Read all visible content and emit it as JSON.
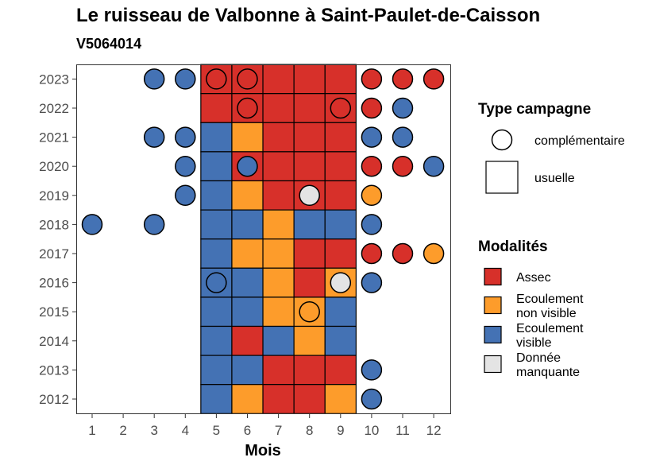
{
  "chart_data": {
    "type": "heatmap",
    "title": "Le ruisseau de Valbonne à Saint-Paulet-de-Caisson",
    "subtitle": "V5064014",
    "xlabel": "Mois",
    "ylabel": "",
    "x_ticks": [
      "1",
      "2",
      "3",
      "4",
      "5",
      "6",
      "7",
      "8",
      "9",
      "10",
      "11",
      "12"
    ],
    "y_ticks": [
      "2012",
      "2013",
      "2014",
      "2015",
      "2016",
      "2017",
      "2018",
      "2019",
      "2020",
      "2021",
      "2022",
      "2023"
    ],
    "colors": {
      "assec": "#d7302a",
      "ecoulement_non_visible": "#fd9c2b",
      "ecoulement_visible": "#4472b4",
      "donnee_manquante": "#e4e4e4"
    },
    "legend_type": {
      "title": "Type campagne",
      "items": [
        {
          "label": "complémentaire",
          "shape": "circle"
        },
        {
          "label": "usuelle",
          "shape": "square"
        }
      ]
    },
    "legend_modalites": {
      "title": "Modalités",
      "items": [
        {
          "key": "assec",
          "label": [
            "Assec"
          ]
        },
        {
          "key": "ecoulement_non_visible",
          "label": [
            "Ecoulement",
            "non visible"
          ]
        },
        {
          "key": "ecoulement_visible",
          "label": [
            "Ecoulement",
            "visible"
          ]
        },
        {
          "key": "donnee_manquante",
          "label": [
            "Donnée",
            "manquante"
          ]
        }
      ]
    },
    "usuelle": [
      {
        "year": 2023,
        "months": [
          "assec",
          "assec",
          "assec",
          "assec",
          "assec"
        ]
      },
      {
        "year": 2022,
        "months": [
          "assec",
          "assec",
          "assec",
          "assec",
          "assec"
        ]
      },
      {
        "year": 2021,
        "months": [
          "ecoulement_visible",
          "ecoulement_non_visible",
          "assec",
          "assec",
          "assec"
        ]
      },
      {
        "year": 2020,
        "months": [
          "ecoulement_visible",
          "assec",
          "assec",
          "assec",
          "assec"
        ]
      },
      {
        "year": 2019,
        "months": [
          "ecoulement_visible",
          "ecoulement_non_visible",
          "assec",
          "assec",
          "assec"
        ]
      },
      {
        "year": 2018,
        "months": [
          "ecoulement_visible",
          "ecoulement_visible",
          "ecoulement_non_visible",
          "ecoulement_visible",
          "ecoulement_visible"
        ]
      },
      {
        "year": 2017,
        "months": [
          "ecoulement_visible",
          "ecoulement_non_visible",
          "ecoulement_non_visible",
          "assec",
          "assec"
        ]
      },
      {
        "year": 2016,
        "months": [
          "ecoulement_visible",
          "ecoulement_visible",
          "ecoulement_non_visible",
          "assec",
          "ecoulement_non_visible"
        ]
      },
      {
        "year": 2015,
        "months": [
          "ecoulement_visible",
          "ecoulement_visible",
          "ecoulement_non_visible",
          "ecoulement_non_visible",
          "ecoulement_visible"
        ]
      },
      {
        "year": 2014,
        "months": [
          "ecoulement_visible",
          "assec",
          "ecoulement_visible",
          "ecoulement_non_visible",
          "ecoulement_visible"
        ]
      },
      {
        "year": 2013,
        "months": [
          "ecoulement_visible",
          "ecoulement_visible",
          "assec",
          "assec",
          "assec"
        ]
      },
      {
        "year": 2012,
        "months": [
          "ecoulement_visible",
          "ecoulement_non_visible",
          "assec",
          "assec",
          "ecoulement_non_visible"
        ]
      }
    ],
    "usuelle_first_month": 5,
    "complementaire": [
      {
        "year": 2023,
        "month": 3,
        "value": "ecoulement_visible"
      },
      {
        "year": 2023,
        "month": 4,
        "value": "ecoulement_visible"
      },
      {
        "year": 2023,
        "month": 5,
        "value": "assec"
      },
      {
        "year": 2023,
        "month": 6,
        "value": "assec"
      },
      {
        "year": 2023,
        "month": 10,
        "value": "assec"
      },
      {
        "year": 2023,
        "month": 11,
        "value": "assec"
      },
      {
        "year": 2023,
        "month": 12,
        "value": "assec"
      },
      {
        "year": 2022,
        "month": 6,
        "value": "assec"
      },
      {
        "year": 2022,
        "month": 9,
        "value": "assec"
      },
      {
        "year": 2022,
        "month": 10,
        "value": "assec"
      },
      {
        "year": 2022,
        "month": 11,
        "value": "ecoulement_visible"
      },
      {
        "year": 2021,
        "month": 3,
        "value": "ecoulement_visible"
      },
      {
        "year": 2021,
        "month": 4,
        "value": "ecoulement_visible"
      },
      {
        "year": 2021,
        "month": 10,
        "value": "ecoulement_visible"
      },
      {
        "year": 2021,
        "month": 11,
        "value": "ecoulement_visible"
      },
      {
        "year": 2020,
        "month": 4,
        "value": "ecoulement_visible"
      },
      {
        "year": 2020,
        "month": 6,
        "value": "ecoulement_visible"
      },
      {
        "year": 2020,
        "month": 10,
        "value": "assec"
      },
      {
        "year": 2020,
        "month": 11,
        "value": "assec"
      },
      {
        "year": 2020,
        "month": 12,
        "value": "ecoulement_visible"
      },
      {
        "year": 2019,
        "month": 4,
        "value": "ecoulement_visible"
      },
      {
        "year": 2019,
        "month": 8,
        "value": "donnee_manquante"
      },
      {
        "year": 2019,
        "month": 10,
        "value": "ecoulement_non_visible"
      },
      {
        "year": 2018,
        "month": 1,
        "value": "ecoulement_visible"
      },
      {
        "year": 2018,
        "month": 3,
        "value": "ecoulement_visible"
      },
      {
        "year": 2018,
        "month": 10,
        "value": "ecoulement_visible"
      },
      {
        "year": 2017,
        "month": 10,
        "value": "assec"
      },
      {
        "year": 2017,
        "month": 11,
        "value": "assec"
      },
      {
        "year": 2017,
        "month": 12,
        "value": "ecoulement_non_visible"
      },
      {
        "year": 2016,
        "month": 5,
        "value": "ecoulement_visible"
      },
      {
        "year": 2016,
        "month": 9,
        "value": "donnee_manquante"
      },
      {
        "year": 2016,
        "month": 10,
        "value": "ecoulement_visible"
      },
      {
        "year": 2015,
        "month": 8,
        "value": "ecoulement_non_visible"
      },
      {
        "year": 2013,
        "month": 10,
        "value": "ecoulement_visible"
      },
      {
        "year": 2012,
        "month": 10,
        "value": "ecoulement_visible"
      }
    ]
  }
}
